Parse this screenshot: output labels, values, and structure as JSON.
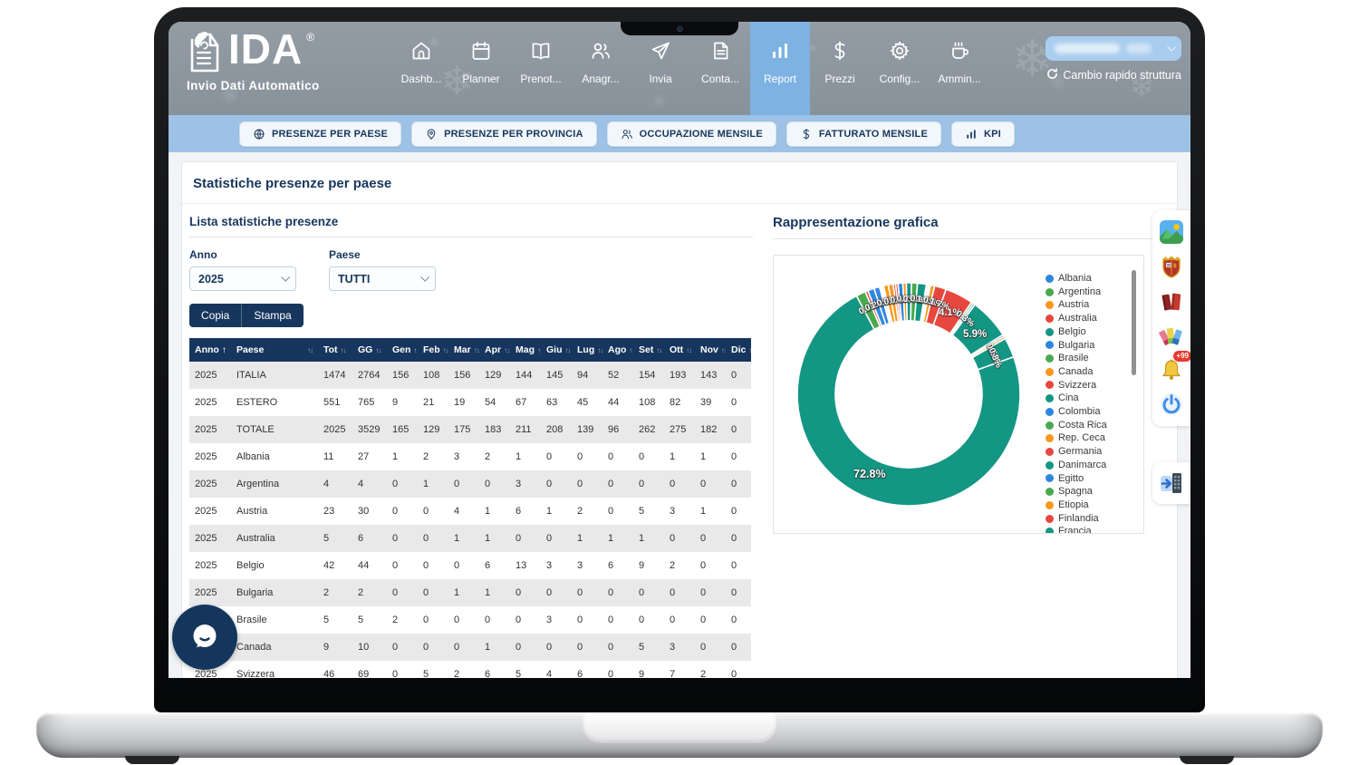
{
  "app": {
    "logo": {
      "title": "IDA",
      "registered": "®",
      "subtitle": "Invio Dati Automatico"
    },
    "nav_items": [
      {
        "label": "Dashb...",
        "icon": "home-icon",
        "active": false
      },
      {
        "label": "Planner",
        "icon": "calendar-icon",
        "active": false
      },
      {
        "label": "Prenot...",
        "icon": "book-icon",
        "active": false
      },
      {
        "label": "Anagr...",
        "icon": "people-icon",
        "active": false
      },
      {
        "label": "Invia",
        "icon": "send-icon",
        "active": false
      },
      {
        "label": "Conta...",
        "icon": "document-icon",
        "active": false
      },
      {
        "label": "Report",
        "icon": "bar-chart-icon",
        "active": true
      },
      {
        "label": "Prezzi",
        "icon": "dollar-icon",
        "active": false
      },
      {
        "label": "Config...",
        "icon": "gear-icon",
        "active": false
      },
      {
        "label": "Ammin...",
        "icon": "coffee-icon",
        "active": false
      }
    ],
    "quick_switch_label": "Cambio rapido struttura",
    "decor_snowflakes": [
      "❄",
      "❄",
      "❄"
    ]
  },
  "tabs": [
    {
      "label": "PRESENZE PER PAESE",
      "icon": "globe-icon"
    },
    {
      "label": "PRESENZE PER PROVINCIA",
      "icon": "pin-icon"
    },
    {
      "label": "OCCUPAZIONE MENSILE",
      "icon": "people-icon"
    },
    {
      "label": "FATTURATO MENSILE",
      "icon": "dollar-icon"
    },
    {
      "label": "KPI",
      "icon": "bar-chart-icon"
    }
  ],
  "page": {
    "title": "Statistiche presenze per paese"
  },
  "list_section": {
    "title": "Lista statistiche presenze",
    "filters": {
      "anno": {
        "label": "Anno",
        "value": "2025"
      },
      "paese": {
        "label": "Paese",
        "value": "TUTTI"
      }
    },
    "actions": {
      "copy": "Copia",
      "print": "Stampa"
    }
  },
  "table": {
    "columns": [
      "Anno",
      "Paese",
      "Tot",
      "GG",
      "Gen",
      "Feb",
      "Mar",
      "Apr",
      "Mag",
      "Giu",
      "Lug",
      "Ago",
      "Set",
      "Ott",
      "Nov",
      "Dic"
    ],
    "sorted_column": "Anno",
    "rows": [
      [
        "2025",
        "ITALIA",
        1474,
        2764,
        156,
        108,
        156,
        129,
        144,
        145,
        94,
        52,
        154,
        193,
        143,
        0
      ],
      [
        "2025",
        "ESTERO",
        551,
        765,
        9,
        21,
        19,
        54,
        67,
        63,
        45,
        44,
        108,
        82,
        39,
        0
      ],
      [
        "2025",
        "TOTALE",
        2025,
        3529,
        165,
        129,
        175,
        183,
        211,
        208,
        139,
        96,
        262,
        275,
        182,
        0
      ],
      [
        "2025",
        "Albania",
        11,
        27,
        1,
        2,
        3,
        2,
        1,
        0,
        0,
        0,
        0,
        1,
        1,
        0
      ],
      [
        "2025",
        "Argentina",
        4,
        4,
        0,
        1,
        0,
        0,
        3,
        0,
        0,
        0,
        0,
        0,
        0,
        0
      ],
      [
        "2025",
        "Austria",
        23,
        30,
        0,
        0,
        4,
        1,
        6,
        1,
        2,
        0,
        5,
        3,
        1,
        0
      ],
      [
        "2025",
        "Australia",
        5,
        6,
        0,
        0,
        1,
        1,
        0,
        0,
        1,
        1,
        1,
        0,
        0,
        0
      ],
      [
        "2025",
        "Belgio",
        42,
        44,
        0,
        0,
        0,
        6,
        13,
        3,
        3,
        6,
        9,
        2,
        0,
        0
      ],
      [
        "2025",
        "Bulgaria",
        2,
        2,
        0,
        0,
        1,
        1,
        0,
        0,
        0,
        0,
        0,
        0,
        0,
        0
      ],
      [
        "2025",
        "Brasile",
        5,
        5,
        2,
        0,
        0,
        0,
        0,
        3,
        0,
        0,
        0,
        0,
        0,
        0
      ],
      [
        "2025",
        "Canada",
        9,
        10,
        0,
        0,
        0,
        1,
        0,
        0,
        0,
        0,
        5,
        3,
        0,
        0
      ],
      [
        "2025",
        "Svizzera",
        46,
        69,
        0,
        5,
        2,
        6,
        5,
        4,
        6,
        0,
        9,
        7,
        2,
        0
      ]
    ]
  },
  "chart_section": {
    "title": "Rappresentazione grafica"
  },
  "chart_data": {
    "type": "pie",
    "subtype": "donut",
    "title": "Rappresentazione grafica",
    "legend_position": "right",
    "palette": [
      "#2d87e0",
      "#4aa94e",
      "#f8981d",
      "#e8473f",
      "#149684"
    ],
    "legend": [
      {
        "label": "Albania",
        "color": "#2d87e0"
      },
      {
        "label": "Argentina",
        "color": "#4aa94e"
      },
      {
        "label": "Austria",
        "color": "#f8981d"
      },
      {
        "label": "Australia",
        "color": "#e8473f"
      },
      {
        "label": "Belgio",
        "color": "#149684"
      },
      {
        "label": "Bulgaria",
        "color": "#2d87e0"
      },
      {
        "label": "Brasile",
        "color": "#4aa94e"
      },
      {
        "label": "Canada",
        "color": "#f8981d"
      },
      {
        "label": "Svizzera",
        "color": "#e8473f"
      },
      {
        "label": "Cina",
        "color": "#149684"
      },
      {
        "label": "Colombia",
        "color": "#2d87e0"
      },
      {
        "label": "Costa Rica",
        "color": "#4aa94e"
      },
      {
        "label": "Rep. Ceca",
        "color": "#f8981d"
      },
      {
        "label": "Germania",
        "color": "#e8473f"
      },
      {
        "label": "Danimarca",
        "color": "#149684"
      },
      {
        "label": "Egitto",
        "color": "#2d87e0"
      },
      {
        "label": "Spagna",
        "color": "#4aa94e"
      },
      {
        "label": "Etiopia",
        "color": "#f8981d"
      },
      {
        "label": "Finlandia",
        "color": "#e8473f"
      },
      {
        "label": "Francia",
        "color": "#149684"
      }
    ],
    "start_angle_deg": -28,
    "slices": [
      {
        "color": "#4aa94e",
        "pct": 1.4
      },
      {
        "color": "#e8473f",
        "pct": 0.4
      },
      {
        "color": "#2d87e0",
        "pct": 0.95
      },
      {
        "color": "#2d87e0",
        "pct": 0.8
      },
      {
        "color": "#ffffff",
        "pct": 0.6
      },
      {
        "color": "#f8981d",
        "pct": 0.7
      },
      {
        "color": "#f8981d",
        "pct": 0.7
      },
      {
        "color": "#e8473f",
        "pct": 0.35
      },
      {
        "color": "#e8473f",
        "pct": 0.35
      },
      {
        "color": "#2d87e0",
        "pct": 0.7
      },
      {
        "color": "#f8981d",
        "pct": 0.5
      },
      {
        "color": "#149684",
        "pct": 0.75
      },
      {
        "color": "#4aa94e",
        "pct": 0.85
      },
      {
        "color": "#149684",
        "pct": 1.3
      },
      {
        "color": "#ffffff",
        "pct": 0.6
      },
      {
        "color": "#f8981d",
        "pct": 0.6
      },
      {
        "color": "#e8473f",
        "pct": 1.7
      },
      {
        "color": "#e8473f",
        "pct": 4.1
      },
      {
        "color": "#4aa94e",
        "pct": 0.3
      },
      {
        "color": "#2d87e0",
        "pct": 0.3
      },
      {
        "color": "#149684",
        "pct": 5.9
      },
      {
        "color": "#2d87e0",
        "pct": 0.3
      },
      {
        "color": "#f8981d",
        "pct": 0.35
      },
      {
        "color": "#149684",
        "pct": 2.9
      },
      {
        "color": "#149684",
        "pct": 72.8
      }
    ],
    "labels": [
      {
        "text": "0.7%",
        "angle": -25,
        "r": 0.85,
        "rot": -25,
        "size": 10
      },
      {
        "text": "0.2%",
        "angle": -21,
        "r": 0.85,
        "rot": -21,
        "size": 10
      },
      {
        "text": "1.0%",
        "angle": -17,
        "r": 0.85,
        "rot": -17,
        "size": 10
      },
      {
        "text": "0.8%",
        "angle": -13,
        "r": 0.85,
        "rot": -13,
        "size": 10
      },
      {
        "text": "0.1%",
        "angle": -9,
        "r": 0.85,
        "rot": -9,
        "size": 10
      },
      {
        "text": "0.6%",
        "angle": -5,
        "r": 0.85,
        "rot": -5,
        "size": 10
      },
      {
        "text": "0.2%",
        "angle": -1,
        "r": 0.85,
        "rot": -1,
        "size": 10
      },
      {
        "text": "0.4%",
        "angle": 3,
        "r": 0.85,
        "rot": 3,
        "size": 10
      },
      {
        "text": "0.9%",
        "angle": 7,
        "r": 0.85,
        "rot": 7,
        "size": 10
      },
      {
        "text": "1.3%",
        "angle": 11,
        "r": 0.85,
        "rot": 11,
        "size": 10
      },
      {
        "text": "0.6%",
        "angle": 15,
        "r": 0.85,
        "rot": 15,
        "size": 10
      },
      {
        "text": "1.7%",
        "angle": 19,
        "r": 0.85,
        "rot": 19,
        "size": 10
      },
      {
        "text": "4.1%",
        "angle": 27,
        "r": 0.82,
        "rot": 0,
        "size": 11
      },
      {
        "text": "0.3%",
        "angle": 37,
        "r": 0.84,
        "rot": 37,
        "size": 10
      },
      {
        "text": "5.9%",
        "angle": 48,
        "r": 0.8,
        "rot": 0,
        "size": 11.5
      },
      {
        "text": "0.5%",
        "angle": 64,
        "r": 0.84,
        "rot": 64,
        "size": 10
      },
      {
        "text": "0.8%",
        "angle": 67,
        "r": 0.84,
        "rot": 67,
        "size": 10
      },
      {
        "text": "72.8%",
        "angle": 206,
        "r": 0.8,
        "rot": 0,
        "size": 12.5
      }
    ]
  },
  "right_toolbar": {
    "icons": [
      "photo-icon",
      "police-crest-icon",
      "red-books-icon",
      "palette-icon",
      "bell-icon",
      "power-icon"
    ],
    "notification_badge": "+99",
    "secondary_icon": "exit-door-icon"
  }
}
